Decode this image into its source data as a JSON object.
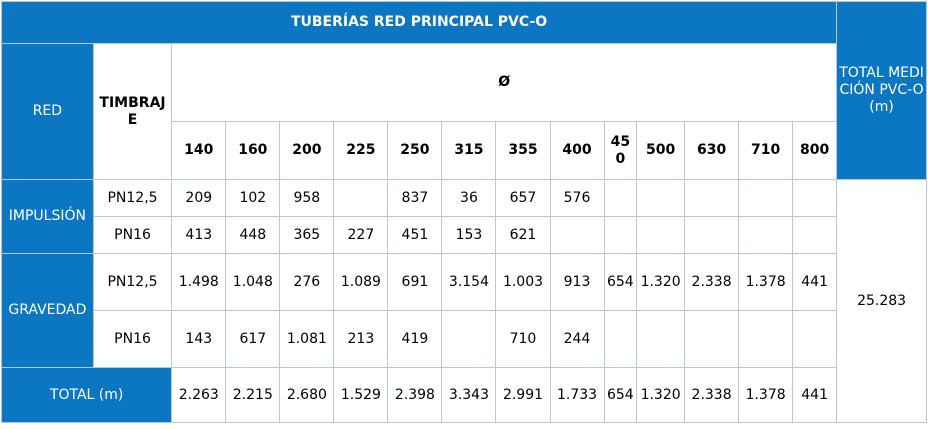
{
  "header": {
    "title": "TUBERÍAS RED PRINCIPAL PVC-O",
    "total_label": "TOTAL MEDICIÓN PVC-O (m)",
    "red_label": "RED",
    "timbraje_label": "TIMBRAJE",
    "diameter_label": "Ø",
    "diameters": [
      "140",
      "160",
      "200",
      "225",
      "250",
      "315",
      "355",
      "400",
      "450",
      "500",
      "630",
      "710",
      "800"
    ]
  },
  "groups": [
    {
      "red": "IMPULSIÓN",
      "rows": [
        {
          "timbraje": "PN12,5",
          "values": [
            "209",
            "102",
            "958",
            "",
            "837",
            "36",
            "657",
            "576",
            "",
            "",
            "",
            "",
            ""
          ]
        },
        {
          "timbraje": "PN16",
          "values": [
            "413",
            "448",
            "365",
            "227",
            "451",
            "153",
            "621",
            "",
            "",
            "",
            "",
            "",
            ""
          ]
        }
      ]
    },
    {
      "red": "GRAVEDAD",
      "rows": [
        {
          "timbraje": "PN12,5",
          "values": [
            "1.498",
            "1.048",
            "276",
            "1.089",
            "691",
            "3.154",
            "1.003",
            "913",
            "654",
            "1.320",
            "2.338",
            "1.378",
            "441"
          ]
        },
        {
          "timbraje": "PN16",
          "values": [
            "143",
            "617",
            "1.081",
            "213",
            "419",
            "",
            "710",
            "244",
            "",
            "",
            "",
            "",
            ""
          ]
        }
      ]
    }
  ],
  "grand_total": "25.283",
  "totals": {
    "label": "TOTAL (m)",
    "values": [
      "2.263",
      "2.215",
      "2.680",
      "1.529",
      "2.398",
      "3.343",
      "2.991",
      "1.733",
      "654",
      "1.320",
      "2.338",
      "1.378",
      "441"
    ]
  },
  "colors": {
    "header_blue": "#0b76c2",
    "border": "#b9c6d3"
  }
}
